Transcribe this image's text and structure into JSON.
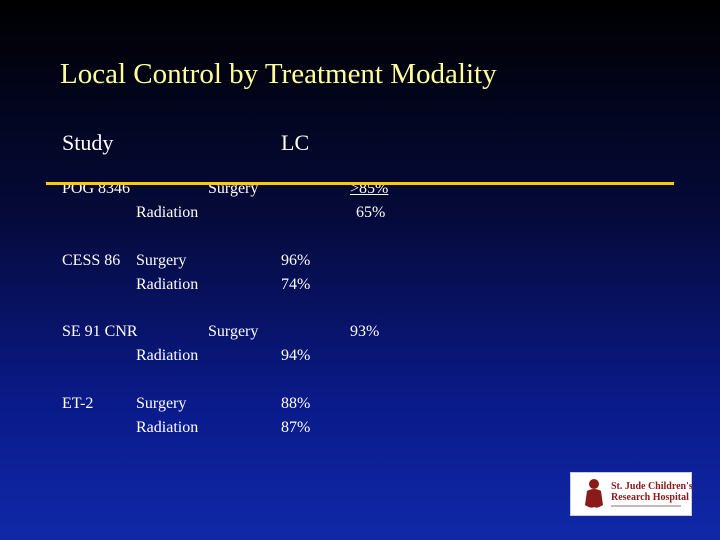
{
  "slide": {
    "title": "Local Control by Treatment Modality",
    "header": {
      "study": "Study",
      "lc": "LC"
    },
    "rows": [
      {
        "study": "POG 8346",
        "surgery": "Surgery",
        "radiation": "Radiation",
        "lc_surgery": ">85%",
        "lc_radiation": "65%"
      },
      {
        "study": "CESS 86",
        "surgery": "Surgery",
        "radiation": "Radiation",
        "lc_surgery": "96%",
        "lc_radiation": "74%"
      },
      {
        "study": "SE 91 CNR",
        "surgery": "Surgery",
        "radiation": "Radiation",
        "lc_surgery": "93%",
        "lc_radiation": "94%"
      },
      {
        "study": "ET-2",
        "surgery": "Surgery",
        "radiation": "Radiation",
        "lc_surgery": "88%",
        "lc_radiation": "87%"
      }
    ],
    "logo": {
      "line1": "St. Jude Children's",
      "line2": "Research Hospital"
    },
    "colors": {
      "title": "#ffff99",
      "rule": "#ffcc00",
      "text": "#ffffff"
    }
  }
}
